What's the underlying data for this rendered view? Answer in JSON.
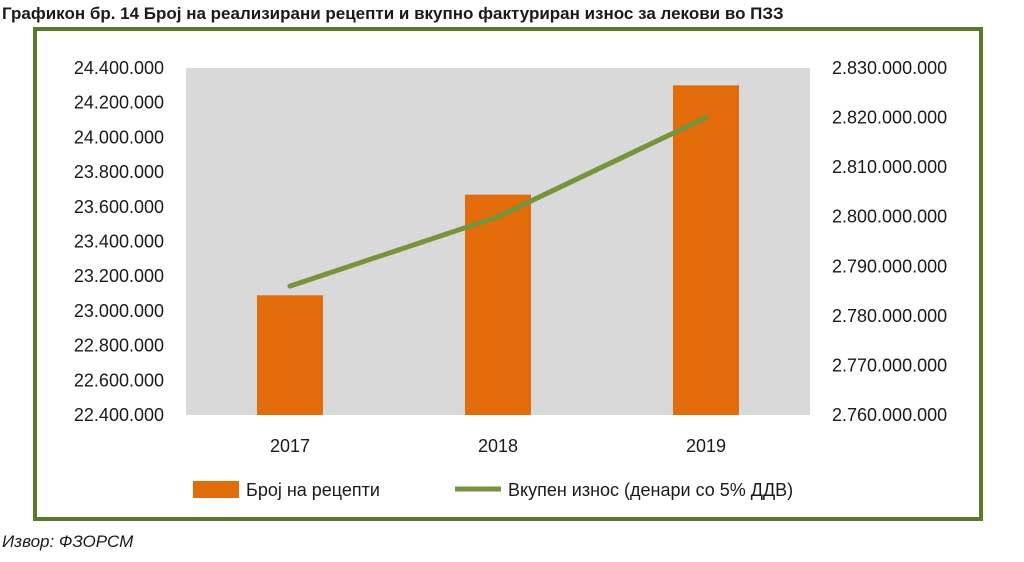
{
  "title": "Графикон бр.  14 Број на реализирани рецепти и вкупно фактуриран износ за лекови во ПЗЗ",
  "source": "Извор: ФЗОРСМ",
  "colors": {
    "bar": "#e36c0a",
    "line": "#77933c",
    "plot_bg": "#d9d9d9",
    "frame": "#5a7a2a"
  },
  "chart_data": {
    "type": "bar",
    "categories": [
      "2017",
      "2018",
      "2019"
    ],
    "series": [
      {
        "name": "Број на рецепти",
        "type": "bar",
        "axis": "left",
        "values": [
          23090000,
          23670000,
          24300000
        ]
      },
      {
        "name": "Вкупен износ (денари со 5% ДДВ)",
        "type": "line",
        "axis": "right",
        "values": [
          2786000000,
          2800000000,
          2820000000
        ]
      }
    ],
    "left_axis": {
      "ylim": [
        22400000,
        24400000
      ],
      "ticks": [
        22400000,
        22600000,
        22800000,
        23000000,
        23200000,
        23400000,
        23600000,
        23800000,
        24000000,
        24200000,
        24400000
      ],
      "tick_labels": [
        "22.400.000",
        "22.600.000",
        "22.800.000",
        "23.000.000",
        "23.200.000",
        "23.400.000",
        "23.600.000",
        "23.800.000",
        "24.000.000",
        "24.200.000",
        "24.400.000"
      ]
    },
    "right_axis": {
      "ylim": [
        2760000000,
        2830000000
      ],
      "ticks": [
        2760000000,
        2770000000,
        2780000000,
        2790000000,
        2800000000,
        2810000000,
        2820000000,
        2830000000
      ],
      "tick_labels": [
        "2.760.000.000",
        "2.770.000.000",
        "2.780.000.000",
        "2.790.000.000",
        "2.800.000.000",
        "2.810.000.000",
        "2.820.000.000",
        "2.830.000.000"
      ]
    },
    "grid": false,
    "legend_position": "bottom"
  }
}
